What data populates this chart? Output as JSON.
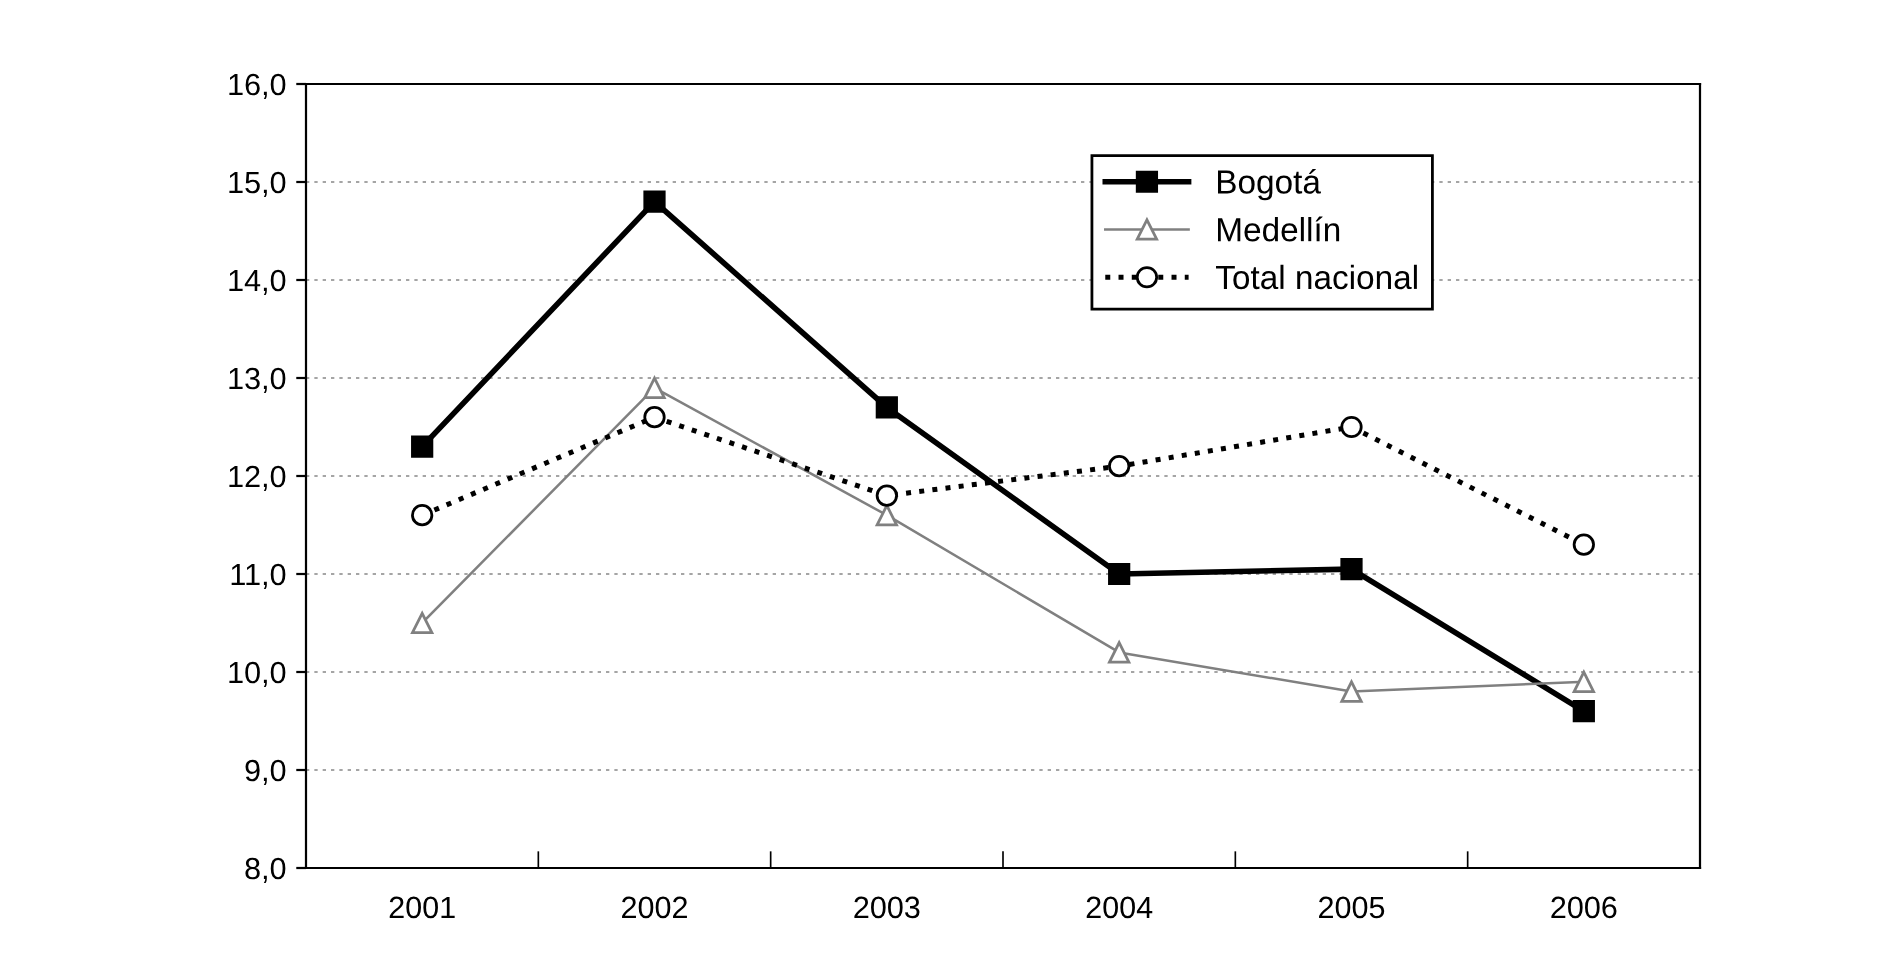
{
  "chart_data": {
    "type": "line",
    "categories": [
      "2001",
      "2002",
      "2003",
      "2004",
      "2005",
      "2006"
    ],
    "series": [
      {
        "name": "Bogotá",
        "color": "#000000",
        "marker": "square",
        "line_style": "solid",
        "values": [
          12.3,
          14.8,
          12.7,
          11.0,
          11.05,
          9.6
        ]
      },
      {
        "name": "Medellín",
        "color": "#808080",
        "marker": "triangle",
        "line_style": "solid",
        "values": [
          10.5,
          12.9,
          11.6,
          10.2,
          9.8,
          9.9
        ]
      },
      {
        "name": "Total nacional",
        "color": "#000000",
        "marker": "circle",
        "line_style": "dotted",
        "values": [
          11.6,
          12.6,
          11.8,
          12.1,
          12.5,
          11.3
        ]
      }
    ],
    "ylim": [
      8,
      16
    ],
    "yticks": [
      {
        "value": 8,
        "label": "8,0"
      },
      {
        "value": 9,
        "label": "9,0"
      },
      {
        "value": 10,
        "label": "10,0"
      },
      {
        "value": 11,
        "label": "11,0"
      },
      {
        "value": 12,
        "label": "12,0"
      },
      {
        "value": 13,
        "label": "13,0"
      },
      {
        "value": 14,
        "label": "14,0"
      },
      {
        "value": 15,
        "label": "15,0"
      },
      {
        "value": 16,
        "label": "16,0"
      }
    ],
    "grid": "y",
    "legend": "top right"
  }
}
